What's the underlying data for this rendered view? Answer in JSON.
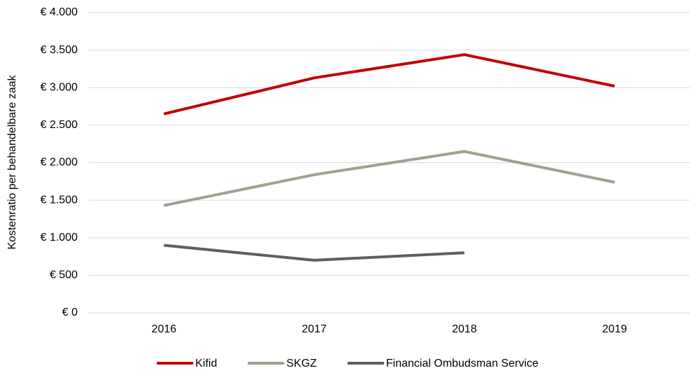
{
  "chart_data": {
    "type": "line",
    "y_label": "Kostenratio per behandelbare zaak",
    "categories": [
      "2016",
      "2017",
      "2018",
      "2019"
    ],
    "series": [
      {
        "name": "Kifid",
        "color": "#c00000",
        "values": [
          2650,
          3130,
          3440,
          3020
        ]
      },
      {
        "name": "SKGZ",
        "color": "#a59d8f",
        "values": [
          1430,
          1840,
          2150,
          1740
        ]
      },
      {
        "name": "Financial Ombudsman Service",
        "color": "#5f5f5f",
        "values": [
          900,
          700,
          800,
          null
        ]
      }
    ],
    "ylim": [
      0,
      4000
    ],
    "yticks": [
      {
        "value": 0,
        "label": "€ 0"
      },
      {
        "value": 500,
        "label": "€ 500"
      },
      {
        "value": 1000,
        "label": "€ 1.000"
      },
      {
        "value": 1500,
        "label": "€ 1.500"
      },
      {
        "value": 2000,
        "label": "€ 2.000"
      },
      {
        "value": 2500,
        "label": "€ 2.500"
      },
      {
        "value": 3000,
        "label": "€ 3.000"
      },
      {
        "value": 3500,
        "label": "€ 3.500"
      },
      {
        "value": 4000,
        "label": "€ 4.000"
      }
    ],
    "grid": true,
    "legend": "bottom"
  }
}
